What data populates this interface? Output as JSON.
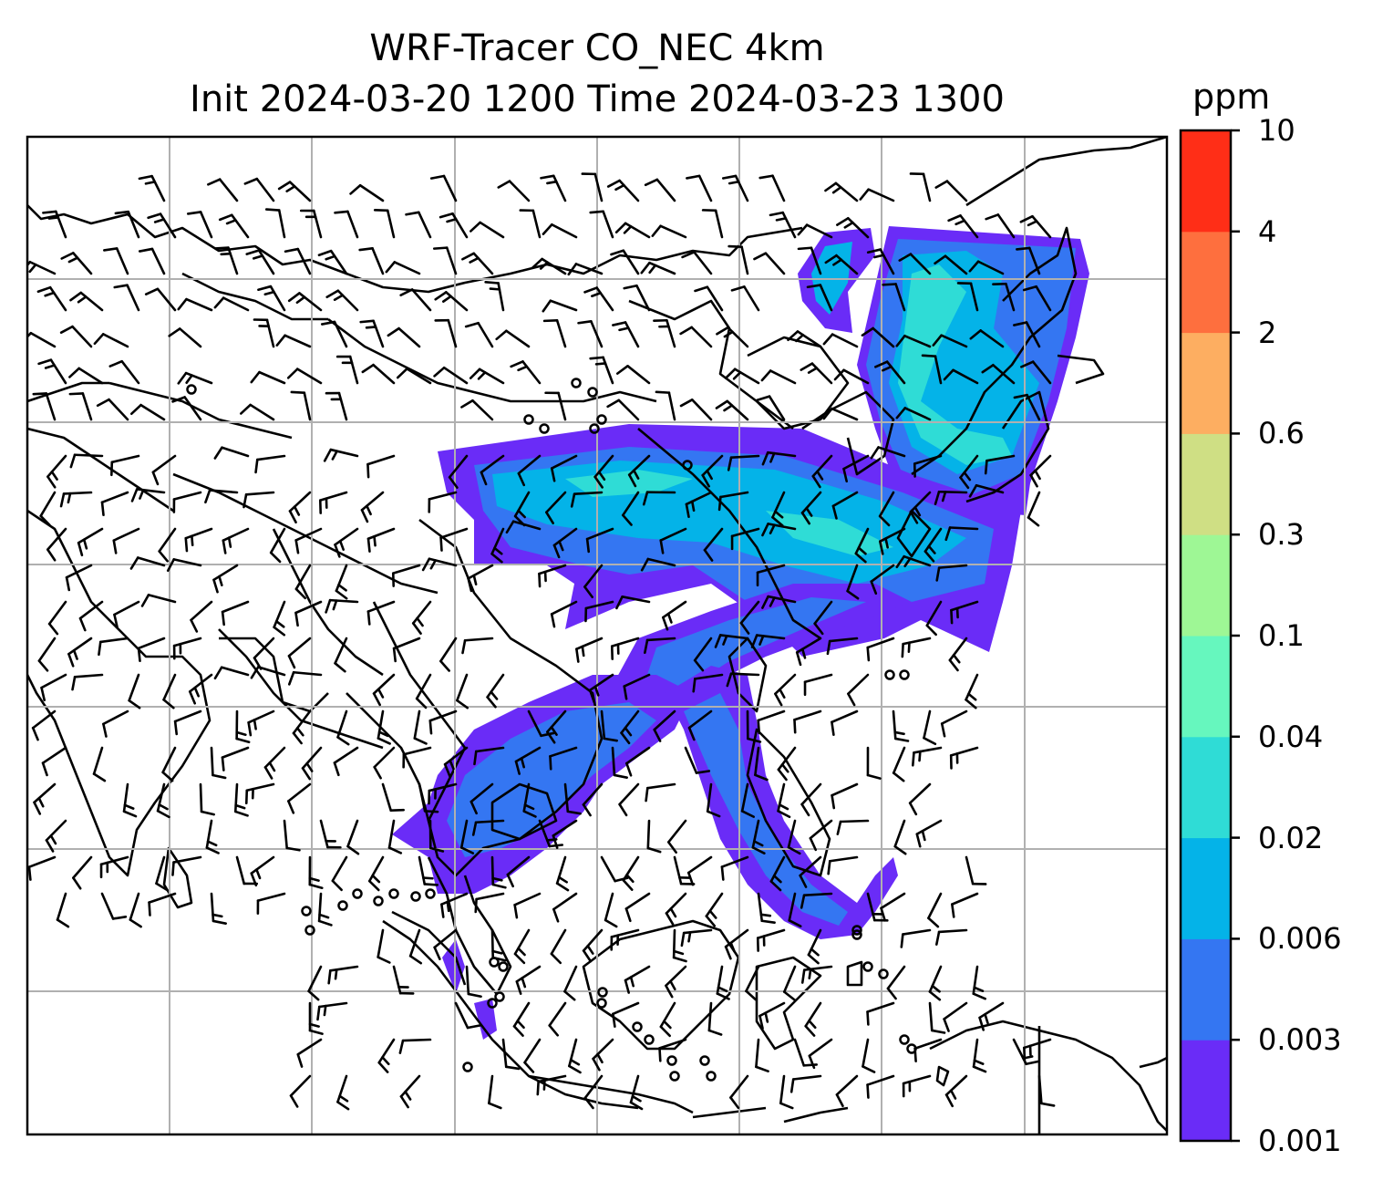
{
  "title": {
    "line1": "WRF-Tracer CO_NEC 4km",
    "line2": "Init 2024-03-20 1200 Time 2024-03-23 1300"
  },
  "colorbar": {
    "units": "ppm",
    "levels": [
      "0.001",
      "0.003",
      "0.006",
      "0.02",
      "0.04",
      "0.1",
      "0.3",
      "0.6",
      "2",
      "4",
      "10"
    ],
    "colors": [
      "#6a2cf7",
      "#3476f2",
      "#04b3e8",
      "#2fdcd6",
      "#66f7be",
      "#9ef795",
      "#cfdf84",
      "#fdae61",
      "#fe6f3e",
      "#ff2e17"
    ]
  },
  "map": {
    "gridlines": "on",
    "wind_barbs": "on",
    "tracer_colors": {
      "c1": "#6a2cf7",
      "c2": "#3476f2",
      "c3": "#04b3e8",
      "c4": "#2fdcd6",
      "c5": "#66f7be"
    }
  }
}
